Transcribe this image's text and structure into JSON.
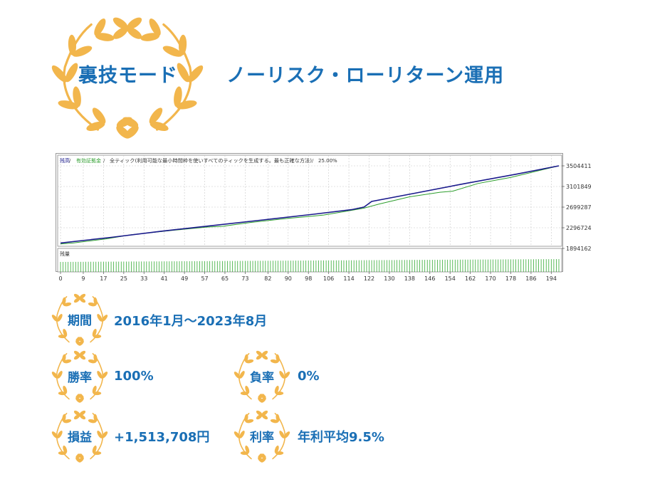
{
  "header": {
    "mode_title": "裏技モード",
    "headline": "ノーリスク・ローリターン運用"
  },
  "colors": {
    "accent_blue": "#1a6fb5",
    "laurel_gold": "#f2b64c",
    "balance_line": "#1a1a8c",
    "equity_line": "#2e9e2e",
    "volume_bar": "#33aa33"
  },
  "chart_data": {
    "type": "line",
    "legend": {
      "balance": "残高",
      "sep1": " / ",
      "equity": "有効証拠金",
      "sep2": " / ",
      "info": "全ティック(利用可能な最小時間枠を使いすべてのティックを生成する。最も正確な方法)",
      "sep3": " / ",
      "quality": "25.00%"
    },
    "volume_label": "残量",
    "y_ticks": [
      "3504411",
      "3101849",
      "2699287",
      "2296724",
      "1894162"
    ],
    "y_tick_values": [
      3504411,
      3101849,
      2699287,
      2296724,
      1894162
    ],
    "x_ticks": [
      "0",
      "9",
      "17",
      "25",
      "33",
      "41",
      "49",
      "57",
      "65",
      "73",
      "82",
      "90",
      "98",
      "106",
      "114",
      "122",
      "130",
      "138",
      "146",
      "154",
      "162",
      "170",
      "178",
      "186",
      "194"
    ],
    "x_range": [
      0,
      197
    ],
    "y_range": [
      1894162,
      3504411
    ],
    "series": [
      {
        "name": "残高",
        "x": [
          0,
          20,
          40,
          60,
          80,
          100,
          115,
          120,
          123,
          140,
          160,
          180,
          197
        ],
        "y": [
          2000000,
          2110000,
          2230000,
          2340000,
          2450000,
          2560000,
          2650000,
          2700000,
          2810000,
          2970000,
          3160000,
          3340000,
          3504411
        ]
      },
      {
        "name": "有効証拠金",
        "x": [
          0,
          5,
          18,
          28,
          45,
          58,
          64,
          75,
          90,
          99,
          104,
          112,
          120,
          126,
          138,
          150,
          155,
          165,
          178,
          197
        ],
        "y": [
          1980000,
          2000000,
          2080000,
          2160000,
          2250000,
          2310000,
          2325000,
          2400000,
          2480000,
          2520000,
          2545000,
          2610000,
          2680000,
          2760000,
          2900000,
          2990000,
          3010000,
          3160000,
          3280000,
          3504411
        ]
      }
    ]
  },
  "stats": {
    "period_label": "期間",
    "period_value": "2016年1月〜2023年8月",
    "win_label": "勝率",
    "win_value": "100%",
    "loss_label": "負率",
    "loss_value": "0%",
    "profit_label": "損益",
    "profit_value": "+1,513,708円",
    "rate_label": "利率",
    "rate_value": "年利平均9.5%"
  }
}
